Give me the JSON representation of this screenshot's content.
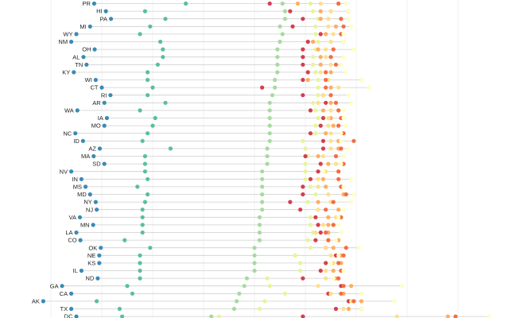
{
  "chart_data": {
    "type": "dot-strip",
    "grid": true,
    "states": [
      "PR",
      "HI",
      "PA",
      "MI",
      "WY",
      "NM",
      "OH",
      "AL",
      "TN",
      "KY",
      "WI",
      "CT",
      "RI",
      "AR",
      "WA",
      "IA",
      "MO",
      "NC",
      "ID",
      "AZ",
      "MA",
      "SD",
      "NV",
      "IN",
      "MS",
      "MD",
      "NY",
      "NJ",
      "VA",
      "MN",
      "LA",
      "CO",
      "OK",
      "NE",
      "KS",
      "IL",
      "ND",
      "GA",
      "CA",
      "AK",
      "TX",
      "DC"
    ],
    "xlim": [
      0,
      100
    ],
    "series": [
      {
        "color": "#3a8bb5",
        "values": [
          18.5,
          20.8,
          21.8,
          17.7,
          15.0,
          14.0,
          18.6,
          16.4,
          17.0,
          14.5,
          18.8,
          20.0,
          21.7,
          20.5,
          15.2,
          21.0,
          20.5,
          14.8,
          16.3,
          19.6,
          18.4,
          20.5,
          14.0,
          16.0,
          16.8,
          17.7,
          18.8,
          19.0,
          15.7,
          18.3,
          15.0,
          15.8,
          19.8,
          19.5,
          19.5,
          16.0,
          19.2,
          12.2,
          14.0,
          8.5,
          14.0,
          15.0
        ]
      },
      {
        "color": "#59bf9f",
        "values": [
          36.5,
          28.5,
          32.5,
          29.5,
          27.5,
          31.5,
          32.0,
          32.0,
          31.0,
          29.0,
          29.0,
          30.0,
          29.0,
          32.5,
          27.5,
          30.5,
          30.0,
          29.0,
          28.0,
          33.5,
          28.5,
          28.5,
          28.5,
          29.0,
          27.0,
          29.0,
          28.5,
          28.0,
          28.0,
          28.0,
          28.0,
          24.5,
          29.5,
          27.5,
          27.5,
          27.5,
          27.5,
          25.0,
          26.0,
          19.0,
          23.5,
          24.0
        ]
      },
      {
        "color": "#a6dba0",
        "values": [
          55.5,
          56.0,
          56.0,
          55.0,
          55.5,
          55.0,
          54.5,
          54.5,
          54.5,
          54.5,
          54.0,
          54.0,
          53.5,
          53.0,
          53.0,
          53.0,
          53.0,
          53.0,
          53.0,
          52.5,
          52.5,
          52.5,
          51.5,
          51.5,
          51.5,
          51.5,
          51.5,
          51.5,
          51.0,
          51.0,
          51.0,
          51.0,
          50.0,
          50.0,
          50.0,
          50.0,
          48.5,
          48.0,
          47.0,
          46.5,
          46.0,
          41.5
        ]
      },
      {
        "color": "#e6f598",
        "values": [
          61.0,
          61.5,
          62.5,
          62.0,
          62.0,
          62.5,
          62.0,
          61.5,
          61.5,
          62.0,
          62.5,
          62.5,
          62.5,
          61.5,
          62.0,
          62.5,
          62.0,
          62.0,
          59.5,
          60.0,
          60.5,
          60.0,
          60.0,
          60.0,
          61.0,
          62.0,
          60.5,
          59.0,
          61.0,
          61.0,
          61.5,
          60.5,
          61.0,
          58.0,
          59.0,
          59.0,
          52.5,
          53.0,
          56.0,
          52.0,
          51.0,
          43.0
        ]
      },
      {
        "color": "#d53e4f",
        "values": [
          53.0,
          57.0,
          59.5,
          57.5,
          63.0,
          60.5,
          59.5,
          59.5,
          59.5,
          60.5,
          59.5,
          51.5,
          59.5,
          64.0,
          61.0,
          63.5,
          63.0,
          61.0,
          63.5,
          63.5,
          60.0,
          63.0,
          62.5,
          61.0,
          59.5,
          59.5,
          57.0,
          59.0,
          62.0,
          62.5,
          63.0,
          62.0,
          64.0,
          66.0,
          64.0,
          63.0,
          59.5,
          67.0,
          64.5,
          68.5,
          66.0,
          59.5
        ]
      },
      {
        "color": "#fdae61",
        "values": [
          58.5,
          63.0,
          63.0,
          66.0,
          64.0,
          61.5,
          62.5,
          63.0,
          63.0,
          65.0,
          60.5,
          65.0,
          63.5,
          65.0,
          63.5,
          65.0,
          65.5,
          64.0,
          66.5,
          66.5,
          62.5,
          64.5,
          66.5,
          63.5,
          64.0,
          67.5,
          62.5,
          66.5,
          64.5,
          64.5,
          64.5,
          66.5,
          65.5,
          67.0,
          67.0,
          65.5,
          66.0,
          69.0,
          67.5,
          71.0,
          68.5,
          88.0
        ]
      },
      {
        "color": "#fee08b",
        "values": [
          63.0,
          65.0,
          64.5,
          64.5,
          65.5,
          65.0,
          64.0,
          64.0,
          65.0,
          63.0,
          64.5,
          66.5,
          63.5,
          62.5,
          65.0,
          64.5,
          64.5,
          65.0,
          65.0,
          65.0,
          63.5,
          66.0,
          64.0,
          62.5,
          62.5,
          64.5,
          65.0,
          62.5,
          66.0,
          63.5,
          62.0,
          64.5,
          64.0,
          65.0,
          65.5,
          64.0,
          64.0,
          62.5,
          65.0,
          69.0,
          67.5,
          78.0
        ]
      },
      {
        "color": "#f46d43",
        "values": [
          66.5,
          68.5,
          67.0,
          67.5,
          67.0,
          67.5,
          65.5,
          65.0,
          66.0,
          64.0,
          64.0,
          64.0,
          65.0,
          66.0,
          66.5,
          67.0,
          66.5,
          67.5,
          69.5,
          67.0,
          66.0,
          67.5,
          66.5,
          66.5,
          67.0,
          68.0,
          65.5,
          64.0,
          67.0,
          65.5,
          64.0,
          64.5,
          68.0,
          67.5,
          66.5,
          67.0,
          66.5,
          67.5,
          67.0,
          69.5,
          71.0,
          89.5
        ]
      },
      {
        "color": "#ffffbf",
        "values": [
          68.0,
          68.5,
          68.5,
          69.0,
          67.5,
          67.5,
          69.5,
          67.5,
          67.0,
          68.0,
          71.0,
          72.5,
          68.5,
          69.0,
          67.5,
          67.5,
          68.0,
          67.0,
          67.0,
          68.5,
          67.5,
          67.0,
          63.5,
          69.0,
          67.5,
          69.5,
          69.0,
          67.5,
          66.5,
          66.5,
          67.0,
          66.0,
          70.5,
          66.5,
          65.0,
          67.5,
          65.5,
          79.0,
          71.0,
          77.5,
          71.0,
          96.0
        ]
      }
    ]
  }
}
